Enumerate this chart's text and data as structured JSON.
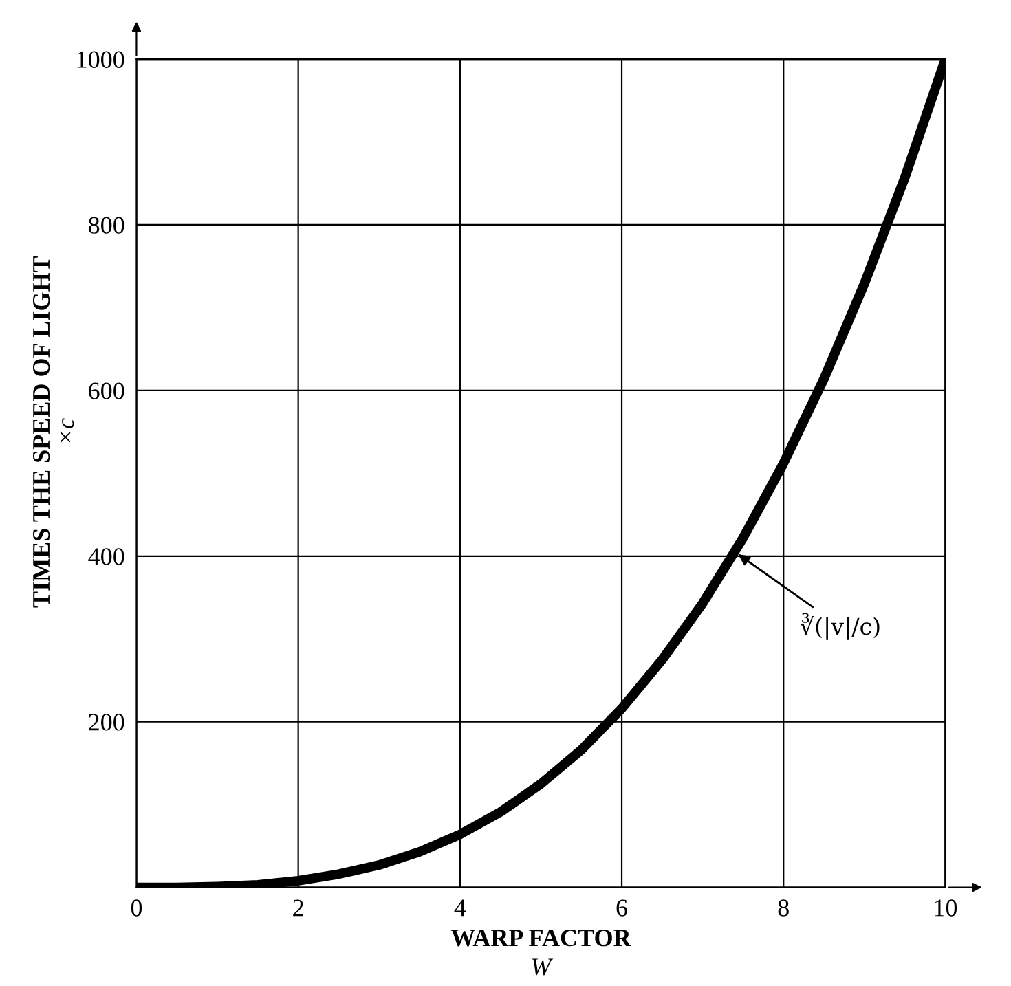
{
  "chart_data": {
    "type": "line",
    "xlabel": "WARP FACTOR\nW",
    "ylabel": "TIMES THE SPEED OF LIGHT\n×c",
    "x": [
      0,
      0.5,
      1,
      1.5,
      2,
      2.5,
      3,
      3.5,
      4,
      4.5,
      5,
      5.5,
      6,
      6.5,
      7,
      7.5,
      8,
      8.5,
      9,
      9.5,
      10
    ],
    "series": [
      {
        "color": "#000000",
        "values": [
          0,
          0,
          1,
          3,
          8,
          16,
          27,
          43,
          64,
          91,
          125,
          166,
          216,
          275,
          343,
          422,
          512,
          614,
          729,
          857,
          1000
        ]
      }
    ],
    "xlim": [
      0,
      10
    ],
    "ylim": [
      0,
      1000
    ],
    "xticks": [
      0,
      2,
      4,
      6,
      8,
      10
    ],
    "yticks": [
      {
        "value": 0,
        "label": null
      },
      200,
      400,
      600,
      800,
      1000
    ],
    "grid": true,
    "legend": false,
    "marker": "none",
    "line_style": "solid",
    "annotations": [
      {
        "text": "∛(|v|/c)",
        "x": 7.4,
        "y": 405
      }
    ]
  }
}
